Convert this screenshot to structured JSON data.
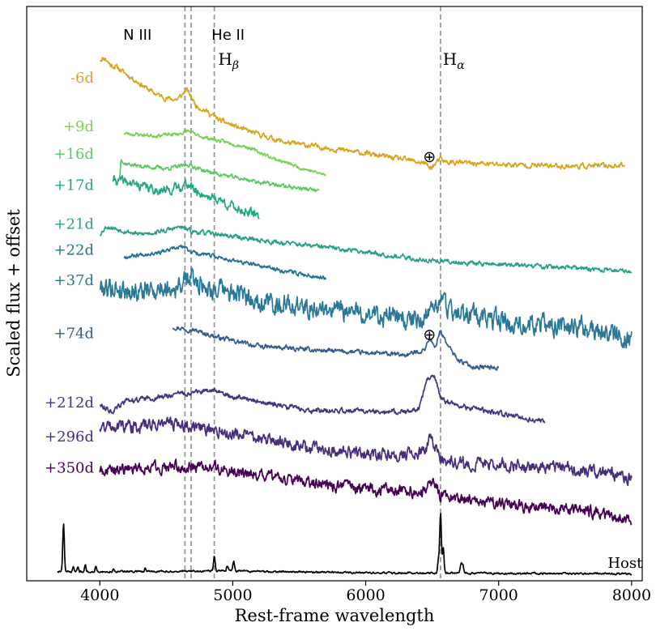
{
  "chart_data": {
    "type": "line",
    "xlabel": "Rest-frame wavelength",
    "ylabel": "Scaled flux + offset",
    "xlim": [
      3450,
      8080
    ],
    "ylim": [
      0,
      100
    ],
    "xticks": [
      4000,
      5000,
      6000,
      7000,
      8000
    ],
    "grid": false,
    "line_annotations": [
      {
        "wavelength": 4640,
        "label": "N III",
        "label_x": 4390,
        "sub": ""
      },
      {
        "wavelength": 4686,
        "label": "He II",
        "label_x": 4840,
        "sub": ""
      },
      {
        "wavelength": 4861,
        "label": "H",
        "label_x": 4890,
        "sub": "β"
      },
      {
        "wavelength": 6563,
        "label": "H",
        "label_x": 6580,
        "sub": "α"
      }
    ],
    "telluric_markers": [
      {
        "symbol": "⊕",
        "x": 6480,
        "y": 73.8
      },
      {
        "symbol": "⊕",
        "x": 6480,
        "y": 42.8
      }
    ],
    "series": [
      {
        "name": "-6d",
        "color": "#d9a521",
        "label_y": 87.6,
        "seed": 11,
        "noise": 0.5,
        "x_start": 4000,
        "x_end": 7950,
        "points": [
          [
            4000,
            90.8
          ],
          [
            4040,
            91.0
          ],
          [
            4080,
            89.8
          ],
          [
            4130,
            89.4
          ],
          [
            4200,
            88.2
          ],
          [
            4300,
            86.6
          ],
          [
            4400,
            85.0
          ],
          [
            4500,
            84.0
          ],
          [
            4580,
            83.8
          ],
          [
            4620,
            84.6
          ],
          [
            4650,
            85.6
          ],
          [
            4690,
            84.2
          ],
          [
            4720,
            82.8
          ],
          [
            4800,
            81.8
          ],
          [
            4861,
            80.8
          ],
          [
            4900,
            80.2
          ],
          [
            5100,
            78.4
          ],
          [
            5400,
            76.3
          ],
          [
            5700,
            75.4
          ],
          [
            6000,
            74.4
          ],
          [
            6300,
            73.3
          ],
          [
            6450,
            72.7
          ],
          [
            6480,
            71.8
          ],
          [
            6520,
            72.5
          ],
          [
            6560,
            73.4
          ],
          [
            6600,
            72.9
          ],
          [
            7000,
            72.5
          ],
          [
            7500,
            72.2
          ],
          [
            7950,
            72.3
          ]
        ]
      },
      {
        "name": "+9d",
        "color": "#7ad151",
        "label_y": 79.1,
        "seed": 23,
        "noise": 0.35,
        "x_start": 4180,
        "x_end": 5700,
        "points": [
          [
            4180,
            77.9
          ],
          [
            4400,
            77.5
          ],
          [
            4600,
            77.8
          ],
          [
            4660,
            78.4
          ],
          [
            4720,
            77.6
          ],
          [
            4900,
            76.6
          ],
          [
            5100,
            75.6
          ],
          [
            5300,
            73.6
          ],
          [
            5500,
            72.0
          ],
          [
            5700,
            70.6
          ]
        ]
      },
      {
        "name": "+16d",
        "color": "#5cc863",
        "label_y": 74.3,
        "seed": 37,
        "noise": 0.4,
        "x_start": 4150,
        "x_end": 5650,
        "points": [
          [
            4150,
            70.3
          ],
          [
            4160,
            73.8
          ],
          [
            4180,
            72.7
          ],
          [
            4300,
            72.2
          ],
          [
            4500,
            71.8
          ],
          [
            4620,
            72.2
          ],
          [
            4660,
            72.5
          ],
          [
            4800,
            71.3
          ],
          [
            5000,
            70.3
          ],
          [
            5300,
            69.0
          ],
          [
            5650,
            67.9
          ]
        ]
      },
      {
        "name": "+17d",
        "color": "#22a884",
        "label_y": 68.9,
        "seed": 41,
        "noise": 0.9,
        "x_start": 4100,
        "x_end": 5200,
        "points": [
          [
            4100,
            69.8
          ],
          [
            4200,
            69.4
          ],
          [
            4300,
            68.8
          ],
          [
            4400,
            68.2
          ],
          [
            4500,
            67.9
          ],
          [
            4600,
            68.6
          ],
          [
            4660,
            69.2
          ],
          [
            4720,
            67.8
          ],
          [
            4800,
            67.1
          ],
          [
            4900,
            66.3
          ],
          [
            5000,
            65.1
          ],
          [
            5100,
            64.3
          ],
          [
            5200,
            63.4
          ]
        ]
      },
      {
        "name": "+21d",
        "color": "#2a9f88",
        "label_y": 62.1,
        "seed": 53,
        "noise": 0.45,
        "x_start": 4000,
        "x_end": 8000,
        "points": [
          [
            4000,
            60.4
          ],
          [
            4050,
            61.7
          ],
          [
            4300,
            60.3
          ],
          [
            4500,
            61.0
          ],
          [
            4600,
            61.6
          ],
          [
            4700,
            60.8
          ],
          [
            4900,
            60.3
          ],
          [
            5200,
            59.3
          ],
          [
            5600,
            58.3
          ],
          [
            6000,
            57.3
          ],
          [
            6400,
            55.9
          ],
          [
            6800,
            55.3
          ],
          [
            7200,
            54.9
          ],
          [
            7600,
            54.4
          ],
          [
            8000,
            53.9
          ]
        ]
      },
      {
        "name": "+22d",
        "color": "#23728e",
        "label_y": 57.6,
        "seed": 67,
        "noise": 0.4,
        "x_start": 4180,
        "x_end": 5700,
        "points": [
          [
            4180,
            56.4
          ],
          [
            4300,
            56.8
          ],
          [
            4500,
            57.4
          ],
          [
            4620,
            58.2
          ],
          [
            4700,
            57.2
          ],
          [
            4900,
            56.3
          ],
          [
            5100,
            55.3
          ],
          [
            5400,
            53.9
          ],
          [
            5700,
            52.7
          ]
        ]
      },
      {
        "name": "+37d",
        "color": "#2b7896",
        "label_y": 52.3,
        "seed": 79,
        "noise": 2.0,
        "x_start": 4000,
        "x_end": 8000,
        "points": [
          [
            4000,
            51.3
          ],
          [
            4300,
            50.4
          ],
          [
            4500,
            51.0
          ],
          [
            4600,
            51.3
          ],
          [
            4680,
            52.8
          ],
          [
            4800,
            51.3
          ],
          [
            5000,
            49.9
          ],
          [
            5300,
            48.4
          ],
          [
            5700,
            47.2
          ],
          [
            6100,
            46.3
          ],
          [
            6400,
            45.0
          ],
          [
            6480,
            47.0
          ],
          [
            6560,
            48.5
          ],
          [
            6650,
            47.2
          ],
          [
            6900,
            45.3
          ],
          [
            7300,
            44.6
          ],
          [
            7700,
            43.7
          ],
          [
            8000,
            42.0
          ]
        ]
      },
      {
        "name": "+74d",
        "color": "#365b8d",
        "label_y": 43.1,
        "seed": 97,
        "noise": 0.45,
        "x_start": 4550,
        "x_end": 7000,
        "points": [
          [
            4550,
            44.2
          ],
          [
            4700,
            43.7
          ],
          [
            4900,
            42.3
          ],
          [
            5200,
            40.8
          ],
          [
            5600,
            40.2
          ],
          [
            6000,
            39.7
          ],
          [
            6300,
            39.3
          ],
          [
            6440,
            40.2
          ],
          [
            6480,
            42.3
          ],
          [
            6520,
            40.4
          ],
          [
            6560,
            43.7
          ],
          [
            6620,
            40.8
          ],
          [
            6700,
            38.4
          ],
          [
            6800,
            37.3
          ],
          [
            7000,
            37.1
          ]
        ]
      },
      {
        "name": "+212d",
        "color": "#46337e",
        "label_y": 31.0,
        "seed": 113,
        "noise": 0.5,
        "x_start": 4000,
        "x_end": 7350,
        "points": [
          [
            4000,
            30.7
          ],
          [
            4100,
            29.5
          ],
          [
            4200,
            31.4
          ],
          [
            4400,
            31.8
          ],
          [
            4600,
            32.6
          ],
          [
            4860,
            33.1
          ],
          [
            5000,
            32.1
          ],
          [
            5300,
            30.7
          ],
          [
            5600,
            29.6
          ],
          [
            6100,
            29.6
          ],
          [
            6300,
            29.3
          ],
          [
            6400,
            29.9
          ],
          [
            6470,
            35.5
          ],
          [
            6520,
            35.7
          ],
          [
            6560,
            32.1
          ],
          [
            6620,
            30.9
          ],
          [
            6800,
            30.0
          ],
          [
            7100,
            28.8
          ],
          [
            7350,
            27.6
          ]
        ]
      },
      {
        "name": "+296d",
        "color": "#472d7b",
        "label_y": 25.1,
        "seed": 131,
        "noise": 1.2,
        "x_start": 4000,
        "x_end": 8000,
        "points": [
          [
            4000,
            26.8
          ],
          [
            4100,
            27.1
          ],
          [
            4300,
            26.8
          ],
          [
            4500,
            27.6
          ],
          [
            4600,
            27.2
          ],
          [
            4800,
            26.5
          ],
          [
            5000,
            25.6
          ],
          [
            5400,
            23.8
          ],
          [
            5800,
            22.5
          ],
          [
            6200,
            21.9
          ],
          [
            6450,
            22.2
          ],
          [
            6480,
            24.8
          ],
          [
            6520,
            23.5
          ],
          [
            6560,
            21.1
          ],
          [
            6700,
            20.5
          ],
          [
            7000,
            20.2
          ],
          [
            7500,
            19.7
          ],
          [
            8000,
            18.0
          ]
        ]
      },
      {
        "name": "+350d",
        "color": "#440154",
        "label_y": 19.7,
        "seed": 149,
        "noise": 1.1,
        "x_start": 4000,
        "x_end": 8000,
        "points": [
          [
            4000,
            19.2
          ],
          [
            4200,
            19.5
          ],
          [
            4400,
            19.8
          ],
          [
            4600,
            19.8
          ],
          [
            4800,
            19.8
          ],
          [
            5000,
            19.2
          ],
          [
            5400,
            17.6
          ],
          [
            5800,
            16.4
          ],
          [
            6200,
            15.6
          ],
          [
            6450,
            15.5
          ],
          [
            6480,
            17.4
          ],
          [
            6520,
            16.9
          ],
          [
            6560,
            14.6
          ],
          [
            6800,
            14.1
          ],
          [
            7200,
            13.0
          ],
          [
            7600,
            12.4
          ],
          [
            8000,
            10.7
          ]
        ]
      },
      {
        "name": "Host",
        "color": "#000000",
        "label_x": 7820,
        "label_y": 3.1,
        "seed": 167,
        "noise": 0.18,
        "x_start": 3680,
        "x_end": 8000,
        "points": [
          [
            3680,
            1.6
          ],
          [
            4000,
            1.6
          ],
          [
            5000,
            1.7
          ],
          [
            6000,
            1.4
          ],
          [
            7000,
            1.3
          ],
          [
            8000,
            1.2
          ]
        ],
        "peaks": [
          [
            3727,
            8.4,
            6
          ],
          [
            3800,
            0.9,
            5
          ],
          [
            3835,
            1.0,
            5
          ],
          [
            3890,
            1.2,
            5
          ],
          [
            3970,
            1.0,
            5
          ],
          [
            4101,
            0.5,
            5
          ],
          [
            4340,
            0.6,
            5
          ],
          [
            4861,
            2.5,
            6
          ],
          [
            4959,
            1.0,
            6
          ],
          [
            5007,
            1.8,
            6
          ],
          [
            6548,
            2.4,
            6
          ],
          [
            6563,
            10.4,
            6
          ],
          [
            6583,
            4.6,
            6
          ],
          [
            6717,
            1.6,
            6
          ],
          [
            6731,
            1.4,
            6
          ]
        ]
      }
    ]
  }
}
